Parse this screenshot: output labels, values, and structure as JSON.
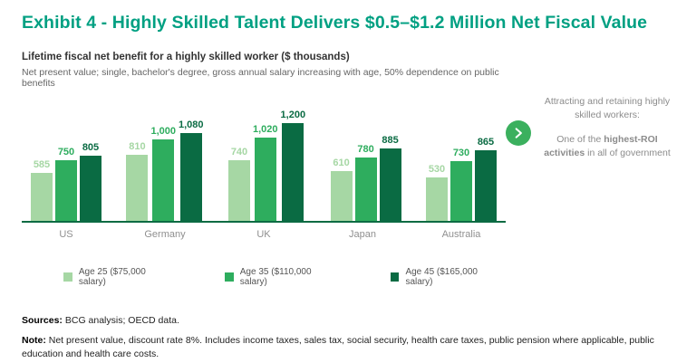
{
  "title": "Exhibit 4 - Highly Skilled Talent Delivers $0.5–$1.2 Million Net Fiscal Value",
  "subtitle": "Lifetime fiscal net benefit for a highly skilled worker ($ thousands)",
  "description": "Net present value; single, bachelor's degree, gross annual salary increasing with age, 50% dependence on public benefits",
  "colors": {
    "accent": "#00a082",
    "axis": "#0c6b43",
    "age25": "#a6d7a4",
    "age35": "#2ead5e",
    "age45": "#0a6b43",
    "annotation_circle": "#3bb05e"
  },
  "chart_data": {
    "type": "bar",
    "categories": [
      "US",
      "Germany",
      "UK",
      "Japan",
      "Australia"
    ],
    "series": [
      {
        "name": "Age 25 ($75,000 salary)",
        "color": "#a6d7a4",
        "values": [
          585,
          810,
          740,
          610,
          530
        ],
        "labels": [
          "585",
          "810",
          "740",
          "610",
          "530"
        ]
      },
      {
        "name": "Age 35 ($110,000 salary)",
        "color": "#2ead5e",
        "values": [
          750,
          1000,
          1020,
          780,
          730
        ],
        "labels": [
          "750",
          "1,000",
          "1,020",
          "780",
          "730"
        ]
      },
      {
        "name": "Age 45 ($165,000 salary)",
        "color": "#0a6b43",
        "values": [
          805,
          1080,
          1200,
          885,
          865
        ],
        "labels": [
          "805",
          "1,080",
          "1,200",
          "885",
          "865"
        ]
      }
    ],
    "ylim": [
      0,
      1200
    ],
    "grid": false,
    "legend_position": "bottom",
    "title": "Lifetime fiscal net benefit for a highly skilled worker ($ thousands)",
    "xlabel": "",
    "ylabel": ""
  },
  "annotation": {
    "line1": "Attracting and retaining highly skilled workers:",
    "line2_pre": "One of the ",
    "line2_bold": "highest-ROI activities",
    "line2_post": " in all of government"
  },
  "footer": {
    "sources_label": "Sources:",
    "sources_text": " BCG analysis; OECD data.",
    "note_label": "Note:",
    "note_text": " Net present value, discount rate 8%. Includes income taxes, sales tax, social security, health care taxes, public pension where applicable, public education and health care costs."
  }
}
